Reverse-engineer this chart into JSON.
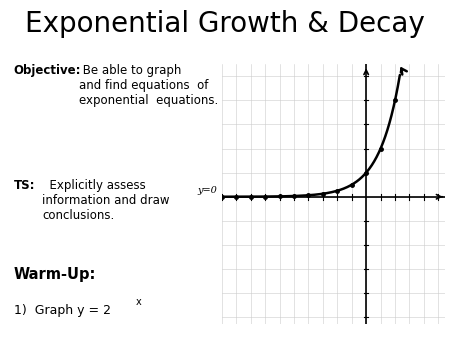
{
  "title": "Exponential Growth & Decay",
  "title_fontsize": 20,
  "title_font": "DejaVu Sans",
  "objective_bold": "Objective:",
  "objective_text": " Be able to graph\nand find equations  of\nexponential  equations.",
  "ts_bold": "TS:",
  "ts_text": "  Explicitly assess\ninformation and draw\nconclusions.",
  "warmup_bold": "Warm-Up:",
  "item1_text": "1)  Graph y = 2",
  "item1_super": "x",
  "bg_color": "#ffffff",
  "text_color": "#000000",
  "grid_color": "#cccccc",
  "curve_color": "#000000",
  "axis_color": "#000000",
  "xmin": -10,
  "xmax": 5,
  "ymin": -5,
  "ymax": 5,
  "curve_lw": 1.8,
  "axis_lw": 1.2,
  "dot_color": "#000000",
  "asymptote_label": "y=0",
  "text_fontsize": 8.5,
  "warmup_fontsize": 10.5
}
